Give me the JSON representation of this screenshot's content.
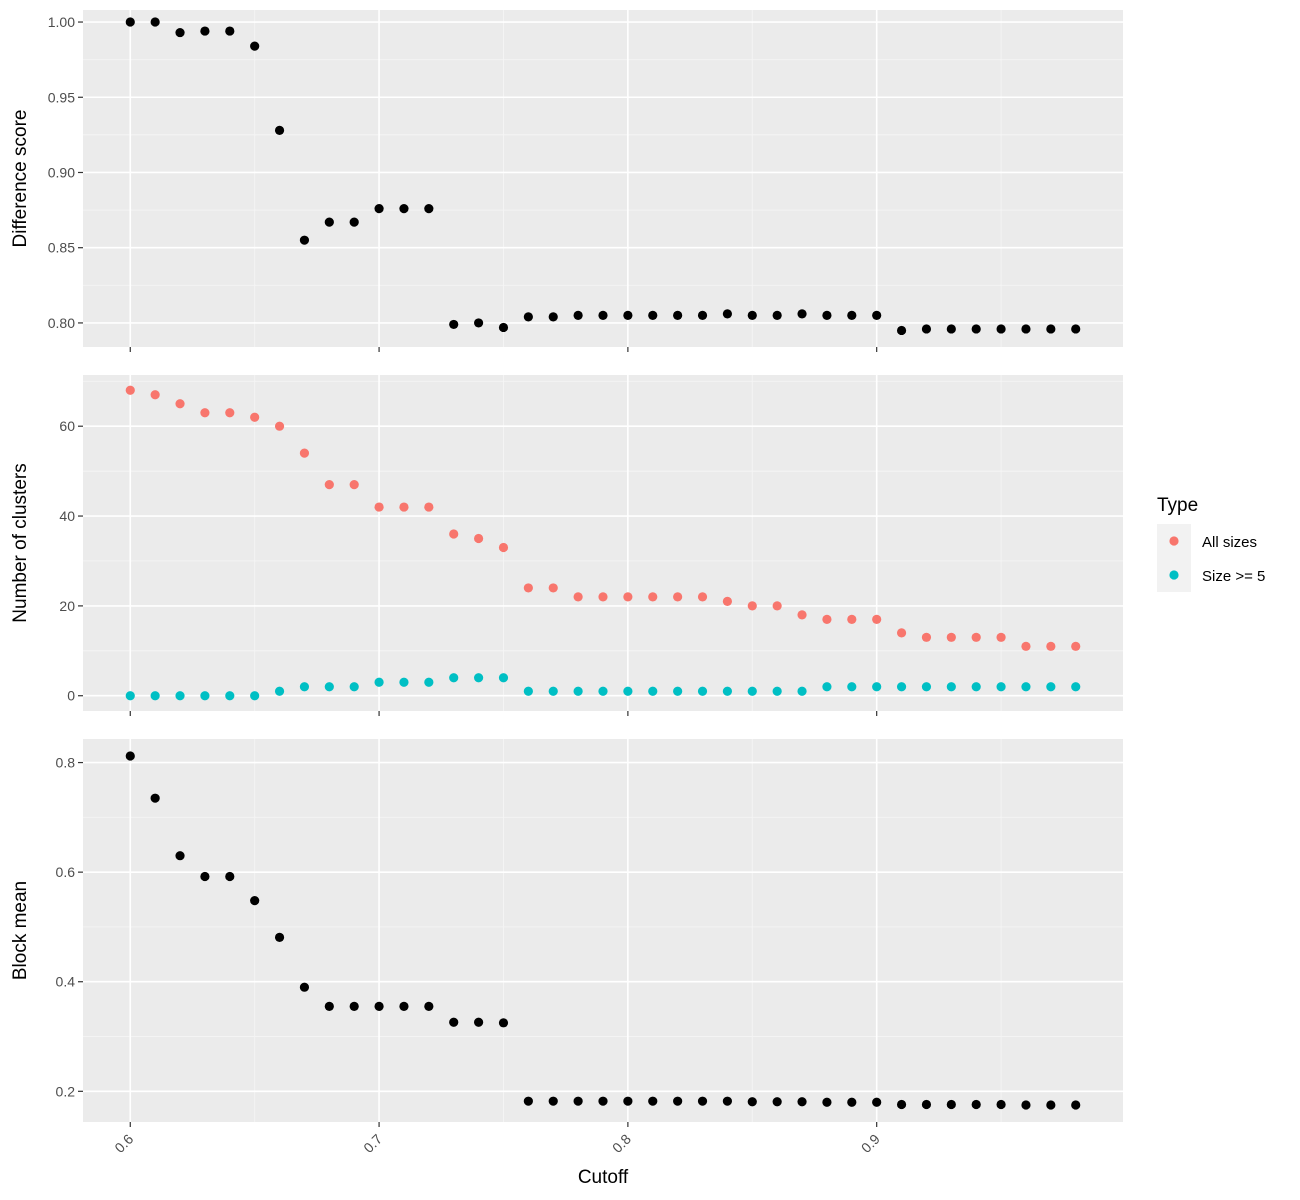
{
  "colors": {
    "panel_background": "#ebebeb",
    "grid_major": "#ffffff",
    "grid_minor": "#f5f5f5",
    "point_default": "#000000",
    "all_sizes": "#f8766d",
    "size_ge_5": "#00bfc4",
    "tick_text": "#4d4d4d"
  },
  "legend": {
    "title": "Type",
    "placement": "right",
    "entries": [
      "All sizes",
      "Size >= 5"
    ]
  },
  "chart_data": [
    {
      "type": "scatter",
      "xlabel": "",
      "ylabel": "Difference score",
      "xlim": [
        0.581,
        0.999
      ],
      "ylim": [
        0.784,
        1.008
      ],
      "x_ticks": [
        0.6,
        0.7,
        0.8,
        0.9
      ],
      "y_ticks": [
        0.8,
        0.85,
        0.9,
        0.95,
        1.0
      ],
      "y_tick_labels": [
        "0.80",
        "0.85",
        "0.90",
        "0.95",
        "1.00"
      ],
      "grid": true,
      "x": [
        0.6,
        0.61,
        0.62,
        0.63,
        0.64,
        0.65,
        0.66,
        0.67,
        0.68,
        0.69,
        0.7,
        0.71,
        0.72,
        0.73,
        0.74,
        0.75,
        0.76,
        0.77,
        0.78,
        0.79,
        0.8,
        0.81,
        0.82,
        0.83,
        0.84,
        0.85,
        0.86,
        0.87,
        0.88,
        0.89,
        0.9,
        0.91,
        0.92,
        0.93,
        0.94,
        0.95,
        0.96,
        0.97,
        0.98
      ],
      "y": [
        1.0,
        1.0,
        0.993,
        0.994,
        0.994,
        0.984,
        0.928,
        0.855,
        0.867,
        0.867,
        0.876,
        0.876,
        0.876,
        0.799,
        0.8,
        0.797,
        0.804,
        0.804,
        0.805,
        0.805,
        0.805,
        0.805,
        0.805,
        0.805,
        0.806,
        0.805,
        0.805,
        0.806,
        0.805,
        0.805,
        0.805,
        0.795,
        0.796,
        0.796,
        0.796,
        0.796,
        0.796,
        0.796,
        0.796
      ]
    },
    {
      "type": "scatter",
      "xlabel": "",
      "ylabel": "Number of clusters",
      "xlim": [
        0.581,
        0.999
      ],
      "ylim": [
        -3.4,
        71.4
      ],
      "x_ticks": [
        0.6,
        0.7,
        0.8,
        0.9
      ],
      "y_ticks": [
        0,
        20,
        40,
        60
      ],
      "y_tick_labels": [
        "0",
        "20",
        "40",
        "60"
      ],
      "grid": true,
      "x": [
        0.6,
        0.61,
        0.62,
        0.63,
        0.64,
        0.65,
        0.66,
        0.67,
        0.68,
        0.69,
        0.7,
        0.71,
        0.72,
        0.73,
        0.74,
        0.75,
        0.76,
        0.77,
        0.78,
        0.79,
        0.8,
        0.81,
        0.82,
        0.83,
        0.84,
        0.85,
        0.86,
        0.87,
        0.88,
        0.89,
        0.9,
        0.91,
        0.92,
        0.93,
        0.94,
        0.95,
        0.96,
        0.97,
        0.98
      ],
      "series": [
        {
          "name": "All sizes",
          "values": [
            68,
            67,
            65,
            63,
            63,
            62,
            60,
            54,
            47,
            47,
            42,
            42,
            42,
            36,
            35,
            33,
            24,
            24,
            22,
            22,
            22,
            22,
            22,
            22,
            21,
            20,
            20,
            18,
            17,
            17,
            17,
            14,
            13,
            13,
            13,
            13,
            11,
            11,
            11
          ]
        },
        {
          "name": "Size >= 5",
          "values": [
            0,
            0,
            0,
            0,
            0,
            0,
            1,
            2,
            2,
            2,
            3,
            3,
            3,
            4,
            4,
            4,
            1,
            1,
            1,
            1,
            1,
            1,
            1,
            1,
            1,
            1,
            1,
            1,
            2,
            2,
            2,
            2,
            2,
            2,
            2,
            2,
            2,
            2,
            2
          ]
        }
      ]
    },
    {
      "type": "scatter",
      "xlabel": "Cutoff",
      "ylabel": "Block mean",
      "xlim": [
        0.581,
        0.999
      ],
      "ylim": [
        0.144,
        0.843
      ],
      "x_ticks": [
        0.6,
        0.7,
        0.8,
        0.9
      ],
      "x_tick_labels": [
        "0.6",
        "0.7",
        "0.8",
        "0.9"
      ],
      "y_ticks": [
        0.2,
        0.4,
        0.6,
        0.8
      ],
      "y_tick_labels": [
        "0.2",
        "0.4",
        "0.6",
        "0.8"
      ],
      "grid": true,
      "x": [
        0.6,
        0.61,
        0.62,
        0.63,
        0.64,
        0.65,
        0.66,
        0.67,
        0.68,
        0.69,
        0.7,
        0.71,
        0.72,
        0.73,
        0.74,
        0.75,
        0.76,
        0.77,
        0.78,
        0.79,
        0.8,
        0.81,
        0.82,
        0.83,
        0.84,
        0.85,
        0.86,
        0.87,
        0.88,
        0.89,
        0.9,
        0.91,
        0.92,
        0.93,
        0.94,
        0.95,
        0.96,
        0.97,
        0.98
      ],
      "y": [
        0.812,
        0.735,
        0.63,
        0.592,
        0.592,
        0.548,
        0.481,
        0.39,
        0.355,
        0.355,
        0.355,
        0.355,
        0.355,
        0.326,
        0.326,
        0.325,
        0.182,
        0.182,
        0.182,
        0.182,
        0.182,
        0.182,
        0.182,
        0.182,
        0.182,
        0.181,
        0.181,
        0.181,
        0.18,
        0.18,
        0.18,
        0.176,
        0.176,
        0.176,
        0.176,
        0.176,
        0.175,
        0.175,
        0.175
      ]
    }
  ]
}
